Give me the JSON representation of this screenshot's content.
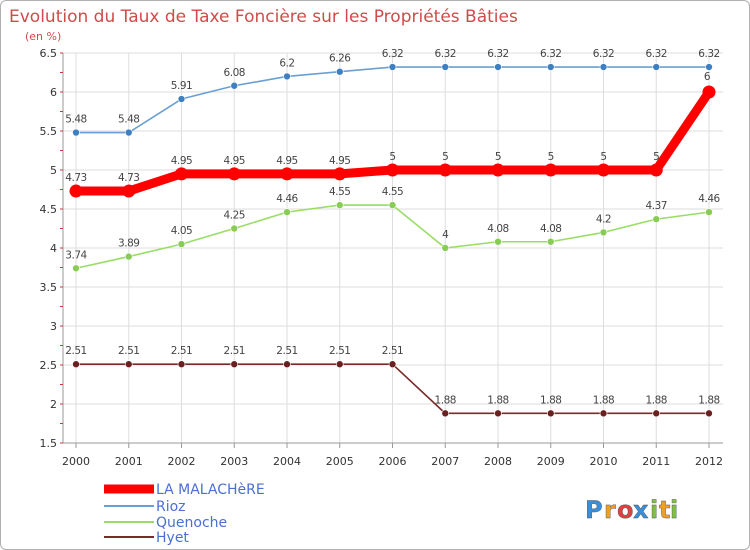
{
  "chart_data": {
    "type": "line",
    "title": "Evolution du Taux de Taxe Foncière sur les Propriétés Bâties",
    "subtitle": "(en %)",
    "xlabel": "",
    "ylabel": "",
    "ylim": [
      1.5,
      6.5
    ],
    "yticks": [
      1.5,
      2,
      2.5,
      3,
      3.5,
      4,
      4.5,
      5,
      5.5,
      6,
      6.5
    ],
    "ytick_labels": [
      "1.5",
      "2",
      "2.5",
      "3",
      "3.5",
      "4",
      "4.5",
      "5",
      "5.5",
      "6",
      "6.5"
    ],
    "categories": [
      "2000",
      "2001",
      "2002",
      "2003",
      "2004",
      "2005",
      "2006",
      "2007",
      "2008",
      "2009",
      "2010",
      "2011",
      "2012"
    ],
    "grid": true,
    "legend_position": "bottom-left",
    "series": [
      {
        "name": "Rioz",
        "color": "#6a9fd4",
        "marker_color": "#3d7fc0",
        "emphasis": false,
        "values": [
          5.48,
          5.48,
          5.91,
          6.08,
          6.2,
          6.26,
          6.32,
          6.32,
          6.32,
          6.32,
          6.32,
          6.32,
          6.32
        ],
        "labels": [
          "5.48",
          "5.48",
          "5.91",
          "6.08",
          "6.2",
          "6.26",
          "6.32",
          "6.32",
          "6.32",
          "6.32",
          "6.32",
          "6.32",
          "6.32"
        ]
      },
      {
        "name": "LA MALACHèRE",
        "color": "#ff0000",
        "marker_color": "#ff0000",
        "emphasis": true,
        "values": [
          4.73,
          4.73,
          4.95,
          4.95,
          4.95,
          4.95,
          5,
          5,
          5,
          5,
          5,
          5,
          6
        ],
        "labels": [
          "4.73",
          "4.73",
          "4.95",
          "4.95",
          "4.95",
          "4.95",
          "5",
          "5",
          "5",
          "5",
          "5",
          "5",
          "6"
        ]
      },
      {
        "name": "Quenoche",
        "color": "#99dd66",
        "marker_color": "#88cc55",
        "emphasis": false,
        "values": [
          3.74,
          3.89,
          4.05,
          4.25,
          4.46,
          4.55,
          4.55,
          4,
          4.08,
          4.08,
          4.2,
          4.37,
          4.46
        ],
        "labels": [
          "3.74",
          "3.89",
          "4.05",
          "4.25",
          "4.46",
          "4.55",
          "4.55",
          "4",
          "4.08",
          "4.08",
          "4.2",
          "4.37",
          "4.46"
        ]
      },
      {
        "name": "Hyet",
        "color": "#7a2a2a",
        "marker_color": "#6a2020",
        "emphasis": false,
        "values": [
          2.51,
          2.51,
          2.51,
          2.51,
          2.51,
          2.51,
          2.51,
          1.88,
          1.88,
          1.88,
          1.88,
          1.88,
          1.88
        ],
        "labels": [
          "2.51",
          "2.51",
          "2.51",
          "2.51",
          "2.51",
          "2.51",
          "2.51",
          "1.88",
          "1.88",
          "1.88",
          "1.88",
          "1.88",
          "1.88"
        ]
      }
    ],
    "legend": [
      "LA MALACHèRE",
      "Rioz",
      "Quenoche",
      "Hyet"
    ]
  },
  "logo": {
    "letters": [
      "P",
      "r",
      "o",
      "x",
      "i",
      "t",
      "i"
    ],
    "colors": [
      "#3a8fd8",
      "#f0a020",
      "#e04040",
      "#3a8fd8",
      "#80c040",
      "#f0a020",
      "#80c040"
    ]
  }
}
